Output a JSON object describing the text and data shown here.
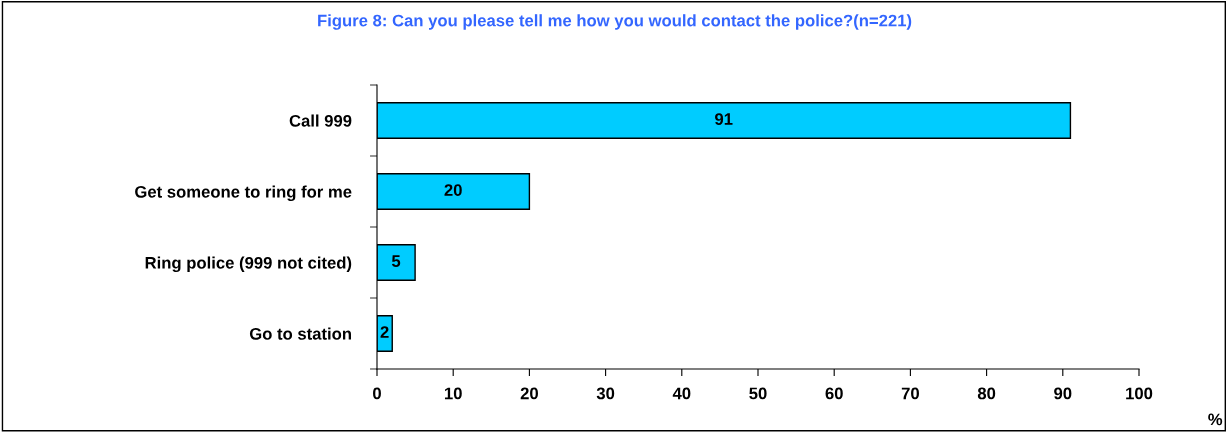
{
  "chart_data": {
    "type": "bar",
    "orientation": "horizontal",
    "title": "Figure 8: Can you please tell me how you would contact the police?(n=221)",
    "categories": [
      "Call 999",
      "Get someone to ring for me",
      "Ring police (999 not cited)",
      "Go to station"
    ],
    "values": [
      91,
      20,
      5,
      2
    ],
    "color": "#00ccff",
    "data_labels": true,
    "xlim": [
      0,
      100
    ],
    "xticks": [
      0,
      10,
      20,
      30,
      40,
      50,
      60,
      70,
      80,
      90,
      100
    ],
    "xlabel": "%",
    "grid": false,
    "legend": false
  }
}
